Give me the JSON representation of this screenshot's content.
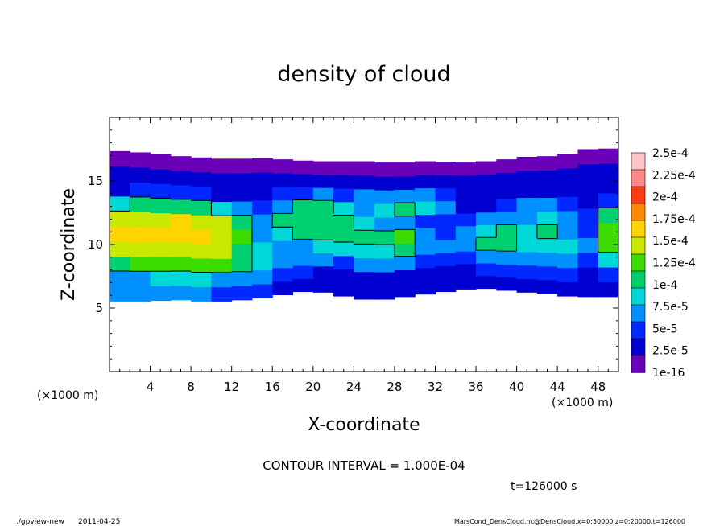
{
  "chart_data": {
    "type": "heatmap",
    "title": "density of cloud",
    "xlabel": "X-coordinate",
    "ylabel": "Z-coordinate",
    "x_unit_label": "(×1000 m)",
    "y_unit_label": "(×1000 m)",
    "xlim": [
      0,
      50
    ],
    "ylim": [
      0,
      20
    ],
    "xticks": [
      4,
      8,
      12,
      16,
      20,
      24,
      28,
      32,
      36,
      40,
      44,
      48
    ],
    "yticks": [
      5,
      10,
      15
    ],
    "colorbar": {
      "labels": [
        "2.5e-4",
        "2.25e-4",
        "2e-4",
        "1.75e-4",
        "1.5e-4",
        "1.25e-4",
        "1e-4",
        "7.5e-5",
        "5e-5",
        "2.5e-5",
        "1e-16"
      ],
      "colors": [
        "#ffc4c4",
        "#ff8888",
        "#ff3c14",
        "#ff8a00",
        "#ffd400",
        "#c8e800",
        "#3cdc00",
        "#00d070",
        "#00d8d8",
        "#0090ff",
        "#0028ff",
        "#0000d0",
        "#6a00b8"
      ]
    },
    "contour_interval": "CONTOUR INTERVAL = 1.000E-04",
    "time_label": "t=126000 s",
    "cloud_layer": {
      "bottom_z": [
        5.5,
        5.6,
        5.5,
        5.7,
        5.6,
        5.5,
        5.6,
        5.7,
        5.9,
        6.2,
        6.4,
        6.1,
        5.8,
        5.6,
        5.8,
        6.0,
        6.2,
        6.4,
        6.6,
        6.5,
        6.3,
        6.2,
        6.1,
        5.8,
        6.0,
        5.8
      ],
      "top_z": [
        17.4,
        17.3,
        17.2,
        17.0,
        16.9,
        16.8,
        16.7,
        16.8,
        16.8,
        16.6,
        16.6,
        16.5,
        16.6,
        16.5,
        16.4,
        16.5,
        16.6,
        16.4,
        16.5,
        16.6,
        16.8,
        17.0,
        16.9,
        17.4,
        17.6,
        17.5
      ],
      "value_grid": [
        [
          0.5,
          0.7,
          1.2,
          1.5,
          1.8,
          1.6,
          0.9,
          0.2,
          0.1,
          0.0
        ],
        [
          0.5,
          0.7,
          1.3,
          1.6,
          1.8,
          1.7,
          1.0,
          0.3,
          0.1,
          0.0
        ],
        [
          0.6,
          0.8,
          1.4,
          1.7,
          1.9,
          1.7,
          1.1,
          0.3,
          0.1,
          0.0
        ],
        [
          0.6,
          0.8,
          1.4,
          1.7,
          1.9,
          1.8,
          1.1,
          0.3,
          0.1,
          0.0
        ],
        [
          0.5,
          0.8,
          1.4,
          1.6,
          1.8,
          1.7,
          1.0,
          0.3,
          0.1,
          0.0
        ],
        [
          0.4,
          0.7,
          1.3,
          1.5,
          1.7,
          1.5,
          0.9,
          0.2,
          0.1,
          0.0
        ],
        [
          0.3,
          0.6,
          1.0,
          1.2,
          1.3,
          1.1,
          0.6,
          0.2,
          0.1,
          0.0
        ],
        [
          0.3,
          0.5,
          0.9,
          0.9,
          0.6,
          0.5,
          0.3,
          0.2,
          0.1,
          0.0
        ],
        [
          0.2,
          0.4,
          0.7,
          0.6,
          0.8,
          1.0,
          0.6,
          0.3,
          0.1,
          0.0
        ],
        [
          0.1,
          0.3,
          0.5,
          0.7,
          1.0,
          1.1,
          1.0,
          0.4,
          0.1,
          0.0
        ],
        [
          0.1,
          0.2,
          0.5,
          0.9,
          1.1,
          1.2,
          1.1,
          0.5,
          0.1,
          0.0
        ],
        [
          0.1,
          0.2,
          0.4,
          0.9,
          1.1,
          1.1,
          0.8,
          0.4,
          0.1,
          0.0
        ],
        [
          0.1,
          0.2,
          0.5,
          0.9,
          1.0,
          0.9,
          0.6,
          0.6,
          0.2,
          0.0
        ],
        [
          0.1,
          0.2,
          0.5,
          0.8,
          1.0,
          0.7,
          0.9,
          0.5,
          0.1,
          0.0
        ],
        [
          0.1,
          0.2,
          0.5,
          1.1,
          1.3,
          0.6,
          1.0,
          0.5,
          0.1,
          0.0
        ],
        [
          0.1,
          0.2,
          0.4,
          0.7,
          0.6,
          0.4,
          0.9,
          0.5,
          0.1,
          0.0
        ],
        [
          0.1,
          0.2,
          0.4,
          0.5,
          0.4,
          0.3,
          0.5,
          0.3,
          0.1,
          0.0
        ],
        [
          0.1,
          0.2,
          0.4,
          0.7,
          0.5,
          0.3,
          0.2,
          0.2,
          0.1,
          0.0
        ],
        [
          0.1,
          0.3,
          0.6,
          1.0,
          0.9,
          0.5,
          0.2,
          0.1,
          0.1,
          0.0
        ],
        [
          0.1,
          0.3,
          0.7,
          1.1,
          1.0,
          0.6,
          0.3,
          0.1,
          0.1,
          0.0
        ],
        [
          0.1,
          0.3,
          0.6,
          0.9,
          0.8,
          0.7,
          0.5,
          0.2,
          0.1,
          0.0
        ],
        [
          0.1,
          0.3,
          0.6,
          0.9,
          1.0,
          0.9,
          0.6,
          0.2,
          0.1,
          0.0
        ],
        [
          0.1,
          0.3,
          0.6,
          0.8,
          0.7,
          0.6,
          0.3,
          0.2,
          0.1,
          0.0
        ],
        [
          0.1,
          0.2,
          0.4,
          0.5,
          0.4,
          0.3,
          0.2,
          0.1,
          0.1,
          0.0
        ],
        [
          0.2,
          0.4,
          0.9,
          1.3,
          1.4,
          1.0,
          0.4,
          0.2,
          0.1,
          0.0
        ]
      ]
    }
  },
  "footer": {
    "program": "./gpview-new",
    "date": "2011-04-25",
    "source": "MarsCond_DensCloud.nc@DensCloud,x=0:50000,z=0:20000,t=126000"
  }
}
